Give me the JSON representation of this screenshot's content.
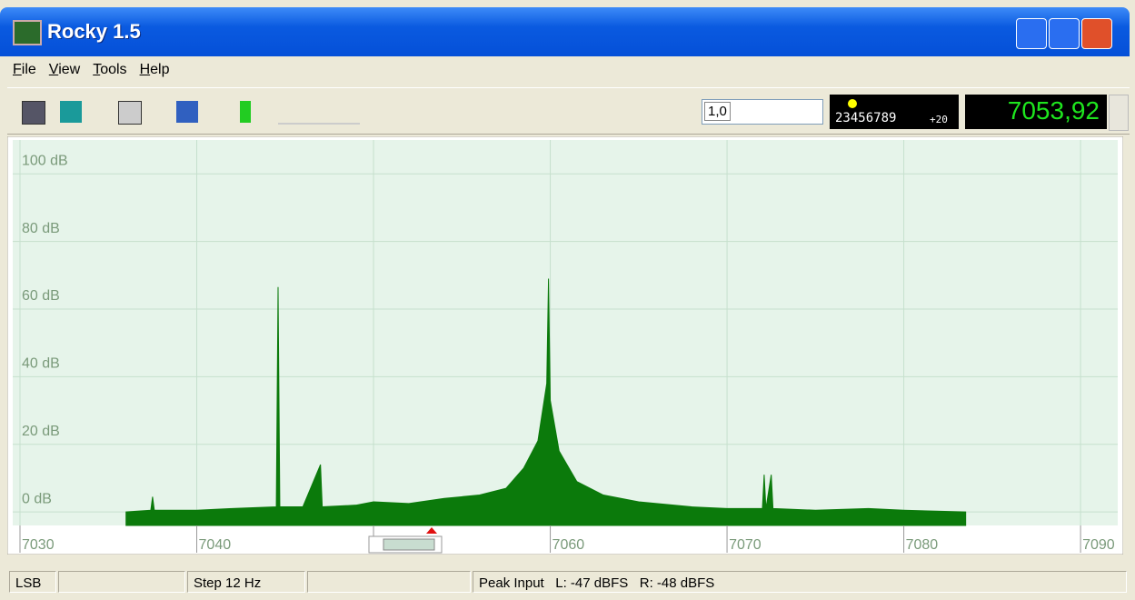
{
  "window": {
    "title": "Rocky 1.5"
  },
  "menu": [
    "File",
    "View",
    "Tools",
    "Help"
  ],
  "toolbar": {
    "step_input": "1,0",
    "display_digits": "23456789",
    "display_level": "+20",
    "frequency": "7053,92"
  },
  "status": [
    "LSB",
    "Step 12 Hz",
    "Peak Input   L: -47 dBFS   R: -48 dBFS"
  ],
  "chart_data": {
    "type": "area",
    "color": "#0b7a0b",
    "grid": true,
    "x": [
      7036.0,
      7037.4,
      7037.5,
      7037.6,
      7040,
      7042,
      7044.5,
      7044.6,
      7044.7,
      7046,
      7047.0,
      7047.1,
      7049,
      7050,
      7052,
      7054,
      7056,
      7057.5,
      7058.5,
      7059.3,
      7059.8,
      7059.9,
      7060.0,
      7060.5,
      7061.5,
      7063,
      7065,
      7068,
      7070,
      7072.0,
      7072.1,
      7072.2,
      7072.5,
      7072.6,
      7075,
      7078,
      7080,
      7083.5
    ],
    "values": [
      0,
      0.5,
      4.5,
      0.5,
      0.5,
      1,
      1.5,
      66.5,
      1.5,
      1.5,
      14,
      1.5,
      2,
      3,
      2.5,
      4,
      5,
      7,
      13,
      21,
      38,
      69,
      33,
      18,
      9,
      5,
      3,
      1.5,
      1,
      1,
      11,
      1,
      11,
      1,
      0.5,
      1,
      0.5,
      0
    ],
    "xlim": [
      7030,
      7092
    ],
    "ylim": [
      -4,
      110
    ],
    "xticks": [
      7030,
      7040,
      7050,
      7060,
      7070,
      7080,
      7090
    ],
    "yticks": [
      {
        "value": 0,
        "label": "0 dB"
      },
      {
        "value": 20,
        "label": "20 dB"
      },
      {
        "value": 40,
        "label": "40 dB"
      },
      {
        "value": 60,
        "label": "60 dB"
      },
      {
        "value": 80,
        "label": "80 dB"
      },
      {
        "value": 100,
        "label": "100 dB"
      }
    ]
  }
}
